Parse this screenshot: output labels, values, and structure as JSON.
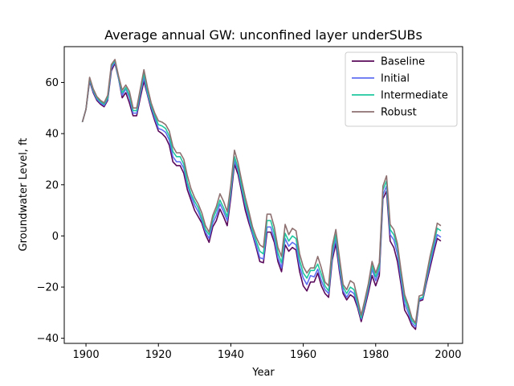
{
  "chart_data": {
    "type": "line",
    "title": "Average annual GW: unconfined layer underSUBs",
    "xlabel": "Year",
    "ylabel": "Groundwater Level, ft",
    "xlim": [
      1894,
      2004
    ],
    "ylim": [
      -42,
      74
    ],
    "xticks": [
      1900,
      1920,
      1940,
      1960,
      1980,
      2000
    ],
    "yticks": [
      -40,
      -20,
      0,
      20,
      40,
      60
    ],
    "grid": false,
    "legend_position": "top-right",
    "x": [
      1899,
      1900,
      1901,
      1902,
      1903,
      1904,
      1905,
      1906,
      1907,
      1908,
      1909,
      1910,
      1911,
      1912,
      1913,
      1914,
      1915,
      1916,
      1917,
      1918,
      1919,
      1920,
      1921,
      1922,
      1923,
      1924,
      1925,
      1926,
      1927,
      1928,
      1929,
      1930,
      1931,
      1932,
      1933,
      1934,
      1935,
      1936,
      1937,
      1938,
      1939,
      1940,
      1941,
      1942,
      1943,
      1944,
      1945,
      1946,
      1947,
      1948,
      1949,
      1950,
      1951,
      1952,
      1953,
      1954,
      1955,
      1956,
      1957,
      1958,
      1959,
      1960,
      1961,
      1962,
      1963,
      1964,
      1965,
      1966,
      1967,
      1968,
      1969,
      1970,
      1971,
      1972,
      1973,
      1974,
      1975,
      1976,
      1977,
      1978,
      1979,
      1980,
      1981,
      1982,
      1983,
      1984,
      1985,
      1986,
      1987,
      1988,
      1989,
      1990,
      1991,
      1992,
      1993,
      1994,
      1995,
      1996,
      1997,
      1998
    ],
    "series": [
      {
        "name": "Baseline",
        "color": "#5a0a5a",
        "values": [
          44.5,
          49.5,
          60.5,
          56,
          53,
          51.5,
          50.5,
          53,
          64.5,
          67.5,
          61.5,
          54,
          56,
          52,
          47,
          47,
          54,
          60.5,
          55,
          49.5,
          45,
          41,
          40,
          38.5,
          35.5,
          29,
          27.5,
          27.5,
          24.5,
          18,
          14,
          10,
          7.5,
          5,
          0.5,
          -2.5,
          3.5,
          6,
          10.5,
          7.5,
          4,
          15,
          28,
          24,
          17,
          10,
          5,
          0.5,
          -4.5,
          -10,
          -10.5,
          1.5,
          1.5,
          -2.5,
          -10,
          -14,
          -3.5,
          -6,
          -4.5,
          -5.5,
          -14,
          -19.5,
          -21.5,
          -18,
          -18,
          -14.5,
          -19.5,
          -22.5,
          -24,
          -9.5,
          -3,
          -14,
          -22.5,
          -25,
          -23,
          -24,
          -28,
          -33.5,
          -28,
          -22,
          -15.5,
          -19.5,
          -15.5,
          14.5,
          17.5,
          -2,
          -4.5,
          -10,
          -19,
          -29,
          -31.5,
          -35,
          -36.5,
          -25.5,
          -25,
          -18.5,
          -12.5,
          -6.5,
          -1,
          -2
        ]
      },
      {
        "name": "Initial",
        "color": "#5f6ff0",
        "values": [
          44.5,
          49.5,
          61,
          56.5,
          53.5,
          52,
          51,
          53.5,
          65.5,
          68,
          61.5,
          55,
          57.5,
          54,
          48,
          48,
          55.5,
          62,
          55.5,
          50.5,
          46,
          42,
          41.5,
          40.5,
          37.5,
          31,
          29,
          29,
          26.5,
          20,
          15.5,
          12,
          9.5,
          6,
          1.5,
          -1,
          5,
          8,
          12.5,
          9.5,
          6,
          17,
          29.5,
          25.5,
          18.5,
          12,
          6.5,
          1,
          -3.5,
          -8.5,
          -9,
          3.5,
          3.5,
          -1,
          -8.5,
          -12.5,
          -1,
          -4,
          -2.5,
          -3.5,
          -12,
          -16.5,
          -19,
          -15.5,
          -16,
          -13,
          -17.5,
          -21,
          -22.5,
          -8,
          -1,
          -12.5,
          -21.5,
          -24,
          -21.5,
          -22.5,
          -27,
          -32.5,
          -27,
          -20.5,
          -13,
          -17.5,
          -13.5,
          16,
          19.5,
          0.5,
          -1.5,
          -7,
          -17,
          -26.5,
          -30,
          -34,
          -35.5,
          -25,
          -24.5,
          -17.5,
          -11,
          -5,
          0.5,
          -0.5
        ]
      },
      {
        "name": "Intermediate",
        "color": "#20c8a0",
        "values": [
          44.5,
          49.5,
          61.5,
          57,
          54,
          52.5,
          51.5,
          54,
          66.5,
          68.5,
          62,
          56,
          58,
          55,
          49,
          49,
          56.5,
          63.5,
          56.5,
          51,
          47,
          43.5,
          43,
          42,
          39,
          33,
          31,
          31,
          28,
          21,
          16.5,
          13.5,
          11,
          7,
          2.5,
          0.5,
          6.5,
          10,
          14,
          11,
          7.5,
          18.5,
          31,
          26.5,
          19.5,
          13,
          8,
          2,
          -2,
          -6,
          -7,
          6,
          6,
          1,
          -6.5,
          -10.5,
          1,
          -2,
          0,
          -1,
          -9.5,
          -14.5,
          -16.5,
          -13.5,
          -13.5,
          -11,
          -15,
          -19.5,
          -21.5,
          -6,
          0.5,
          -10.5,
          -20,
          -22.5,
          -20,
          -21,
          -26,
          -32,
          -26,
          -19.5,
          -11.5,
          -16,
          -12,
          18,
          21.5,
          2.5,
          0.5,
          -4.5,
          -15,
          -24.5,
          -28.5,
          -33,
          -34.5,
          -24.5,
          -24,
          -16.5,
          -9.5,
          -3.5,
          3,
          2
        ]
      },
      {
        "name": "Robust",
        "color": "#8e7070",
        "values": [
          44.5,
          49.5,
          62,
          57.5,
          54.5,
          53,
          52,
          55,
          67,
          69,
          62.5,
          57,
          59,
          56.5,
          50,
          50,
          57.5,
          65,
          58,
          52,
          48,
          45,
          44.5,
          43.5,
          41,
          35,
          32.5,
          32.5,
          30,
          23.5,
          18.5,
          15,
          12.5,
          9,
          4,
          1.5,
          8,
          11.5,
          16.5,
          13.5,
          9.5,
          20,
          33.5,
          28.5,
          21.5,
          15,
          9.5,
          3.5,
          -0.5,
          -3.5,
          -4.5,
          8.5,
          8.5,
          3.5,
          -4.5,
          -8,
          4.5,
          0.5,
          3,
          2,
          -7,
          -12,
          -14.5,
          -12.5,
          -12.5,
          -8,
          -12.5,
          -18,
          -19.5,
          -4,
          2.5,
          -8.5,
          -19,
          -21,
          -17.5,
          -18.5,
          -24.5,
          -31,
          -25,
          -18.5,
          -10,
          -14.5,
          -10.5,
          19.5,
          23.5,
          4.5,
          2.5,
          -3,
          -13.5,
          -23,
          -27,
          -32,
          -34,
          -23.5,
          -23,
          -15.5,
          -8,
          -2,
          5,
          4
        ]
      }
    ]
  }
}
